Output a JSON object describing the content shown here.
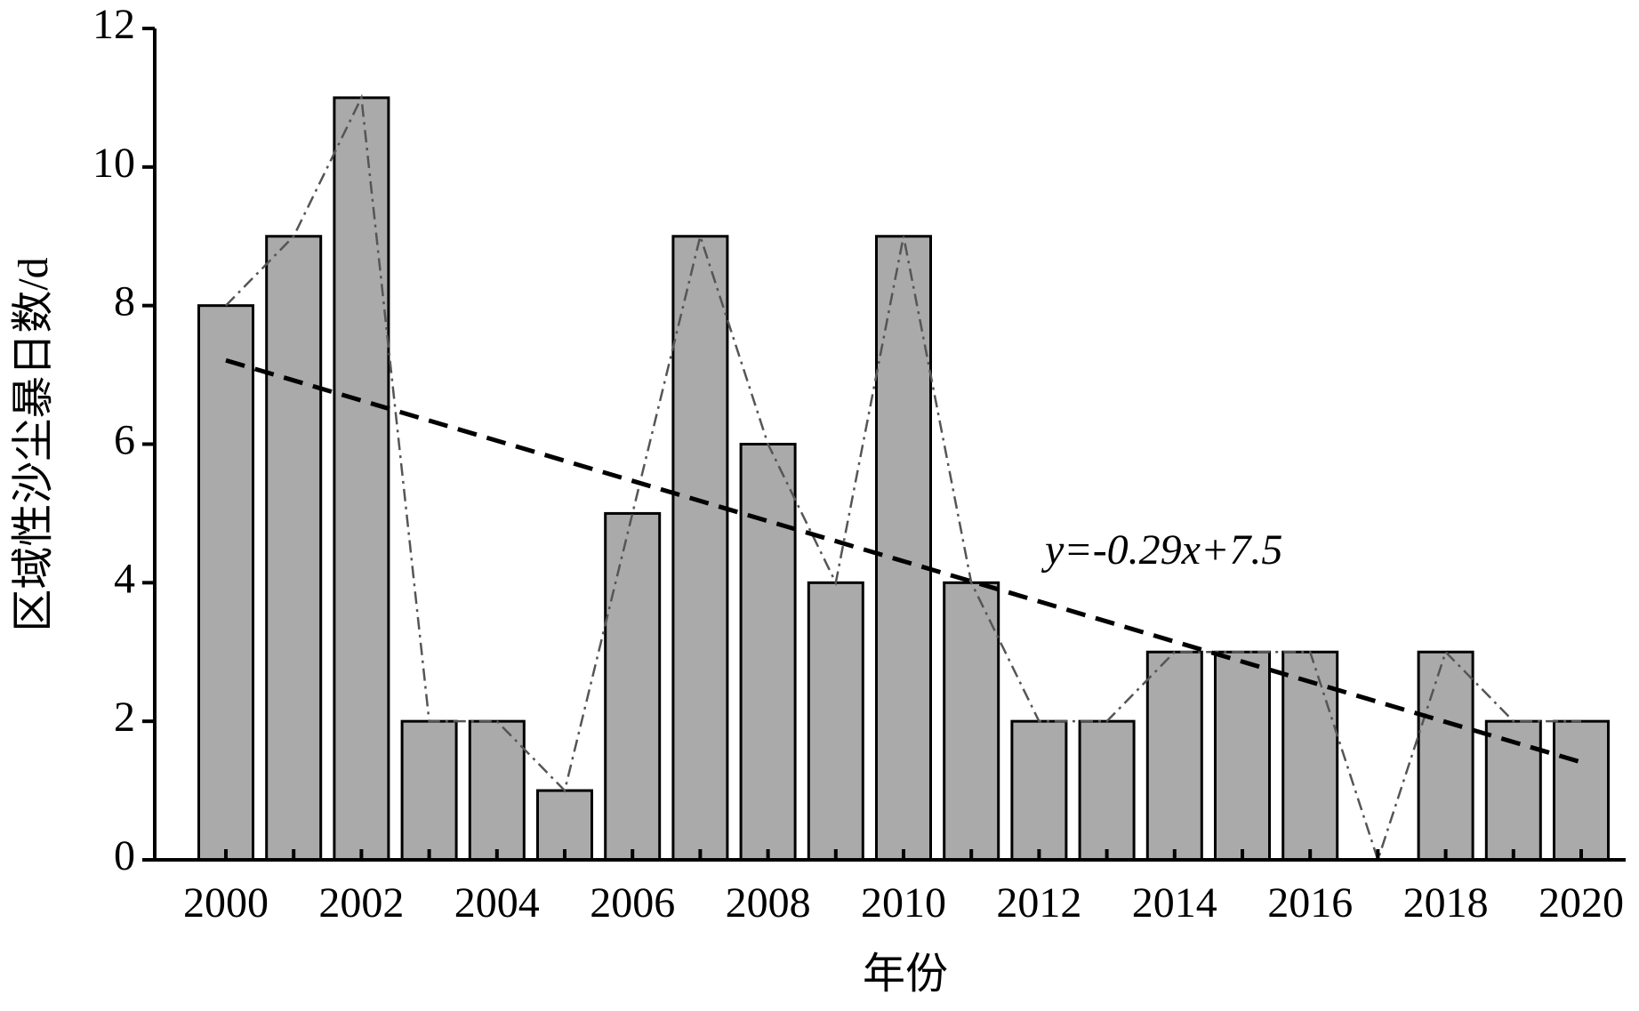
{
  "chart_data": {
    "type": "bar",
    "x_label": "年份",
    "y_label": "区域性沙尘暴日数/d",
    "categories": [
      "2000",
      null,
      "2002",
      null,
      "2004",
      null,
      "2006",
      null,
      "2008",
      null,
      "2010",
      null,
      "2012",
      null,
      "2014",
      null,
      "2016",
      null,
      "2018",
      null,
      "2020"
    ],
    "values": [
      8,
      9,
      11,
      2,
      2,
      1,
      5,
      9,
      6,
      4,
      9,
      4,
      2,
      2,
      3,
      3,
      3,
      0,
      3,
      2,
      2
    ],
    "color": "#aaaaaa",
    "line_color": "#555555",
    "trend": {
      "slope": -0.29,
      "intercept": 7.5,
      "label": "y=-0.29x+7.5"
    },
    "ylim": [
      0,
      12
    ],
    "yticks": [
      0,
      2,
      4,
      6,
      8,
      10,
      12
    ]
  }
}
